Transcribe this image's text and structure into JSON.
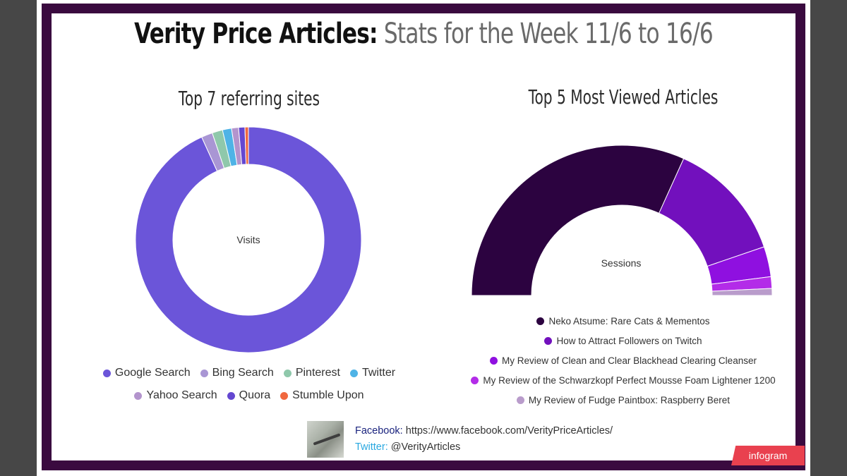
{
  "title_main": "Verity Price Articles:",
  "title_rest": "Stats for the Week 11/6 to 16/6",
  "chart_data": [
    {
      "type": "donut",
      "title": "Top 7 referring sites",
      "center_label": "Visits",
      "legend_placement": "bottom",
      "categories": [
        "Google Search",
        "Bing Search",
        "Pinterest",
        "Twitter",
        "Yahoo Search",
        "Quora",
        "Stumble Upon"
      ],
      "values": [
        93.2,
        1.6,
        1.5,
        1.3,
        1.0,
        0.9,
        0.5
      ],
      "colors": [
        "#6b55d9",
        "#a996d4",
        "#8fc8ab",
        "#4fb3e6",
        "#b394cd",
        "#6447d1",
        "#f0683f"
      ]
    },
    {
      "type": "half-donut",
      "title": "Top 5 Most Viewed Articles",
      "center_label": "Sessions",
      "legend_placement": "bottom",
      "categories": [
        "Neko Atsume: Rare Cats & Mementos",
        "How to Attract Followers on Twitch",
        "My Review of Clean and Clear Blackhead Clearing Cleanser",
        "My Review of the Schwarzkopf Perfect Mousse Foam Lightener 1200",
        "My Review of Fudge Paintbox: Raspberry Beret"
      ],
      "values": [
        63.5,
        26.0,
        6.5,
        2.5,
        1.5
      ],
      "colors": [
        "#2c0340",
        "#7210bd",
        "#8f10e0",
        "#b32ce8",
        "#b99ccb"
      ]
    }
  ],
  "footer": {
    "facebook_label": "Facebook:",
    "facebook_url": "https://www.facebook.com/VerityPriceArticles/",
    "twitter_label": "Twitter:",
    "twitter_handle": "@VerityArticles"
  },
  "badge_text": "infogram",
  "colors": {
    "frame": "#3a0a3f",
    "background": "#474747",
    "badge": "#e9414f"
  }
}
